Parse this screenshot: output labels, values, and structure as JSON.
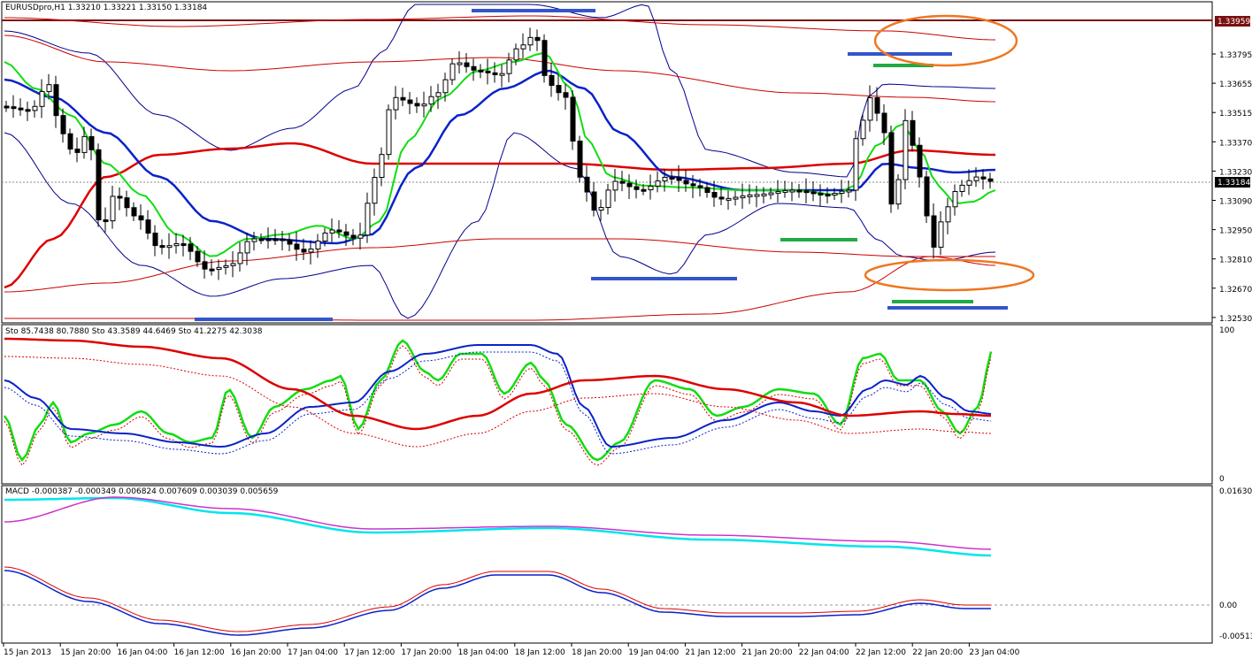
{
  "main": {
    "title": "EURUSDpro,H1  1.33210 1.33221 1.33150 1.33184",
    "price_ticks": [
      "1.33795",
      "1.33655",
      "1.33515",
      "1.33370",
      "1.33230",
      "1.33090",
      "1.32950",
      "1.32810",
      "1.32670",
      "1.32530"
    ],
    "current_price": "1.33184",
    "top_price": "1.33959"
  },
  "stochastic": {
    "title": "Sto 85.7438 80.7880  Sto 43.3589 44.6469  Sto 41.2275 42.3038",
    "axis_top": "100",
    "axis_bottom": "0"
  },
  "macd": {
    "title": "MACD -0.000387 -0.000349 0.006824 0.007609 0.003039 0.005659",
    "axis_top": "0.016303",
    "axis_zero": "0.00",
    "axis_bottom": "-0.00513"
  },
  "time_axis": [
    "15 Jan 2013",
    "15 Jan 20:00",
    "16 Jan 04:00",
    "16 Jan 12:00",
    "16 Jan 20:00",
    "17 Jan 04:00",
    "17 Jan 12:00",
    "17 Jan 20:00",
    "18 Jan 04:00",
    "18 Jan 12:00",
    "18 Jan 20:00",
    "19 Jan 04:00",
    "21 Jan 12:00",
    "21 Jan 20:00",
    "22 Jan 04:00",
    "22 Jan 12:00",
    "22 Jan 20:00",
    "23 Jan 04:00"
  ],
  "colors": {
    "bull_candle": "#ffffff",
    "bear_candle": "#000000",
    "fast_ma": "#00dd00",
    "mid_ma": "#0000cc",
    "slow_ma": "#dd0000",
    "bands_blue": "#00008b",
    "bands_red": "#cc0000",
    "support_blue": "#3355cc",
    "support_green": "#22aa44",
    "ellipse": "#ee7722",
    "macd_main": "#00e5ee",
    "macd_signal": "#cc33cc",
    "price_marker": "#7a1010"
  },
  "chart_data": [
    {
      "type": "line",
      "title": "EURUSDpro,H1",
      "y_range": [
        1.3253,
        1.3397
      ],
      "series": []
    },
    {
      "type": "line",
      "title": "Sto",
      "y_range": [
        0,
        100
      ],
      "series": []
    },
    {
      "type": "line",
      "title": "MACD",
      "y_range": [
        -0.00513,
        0.016303
      ],
      "series": []
    }
  ]
}
